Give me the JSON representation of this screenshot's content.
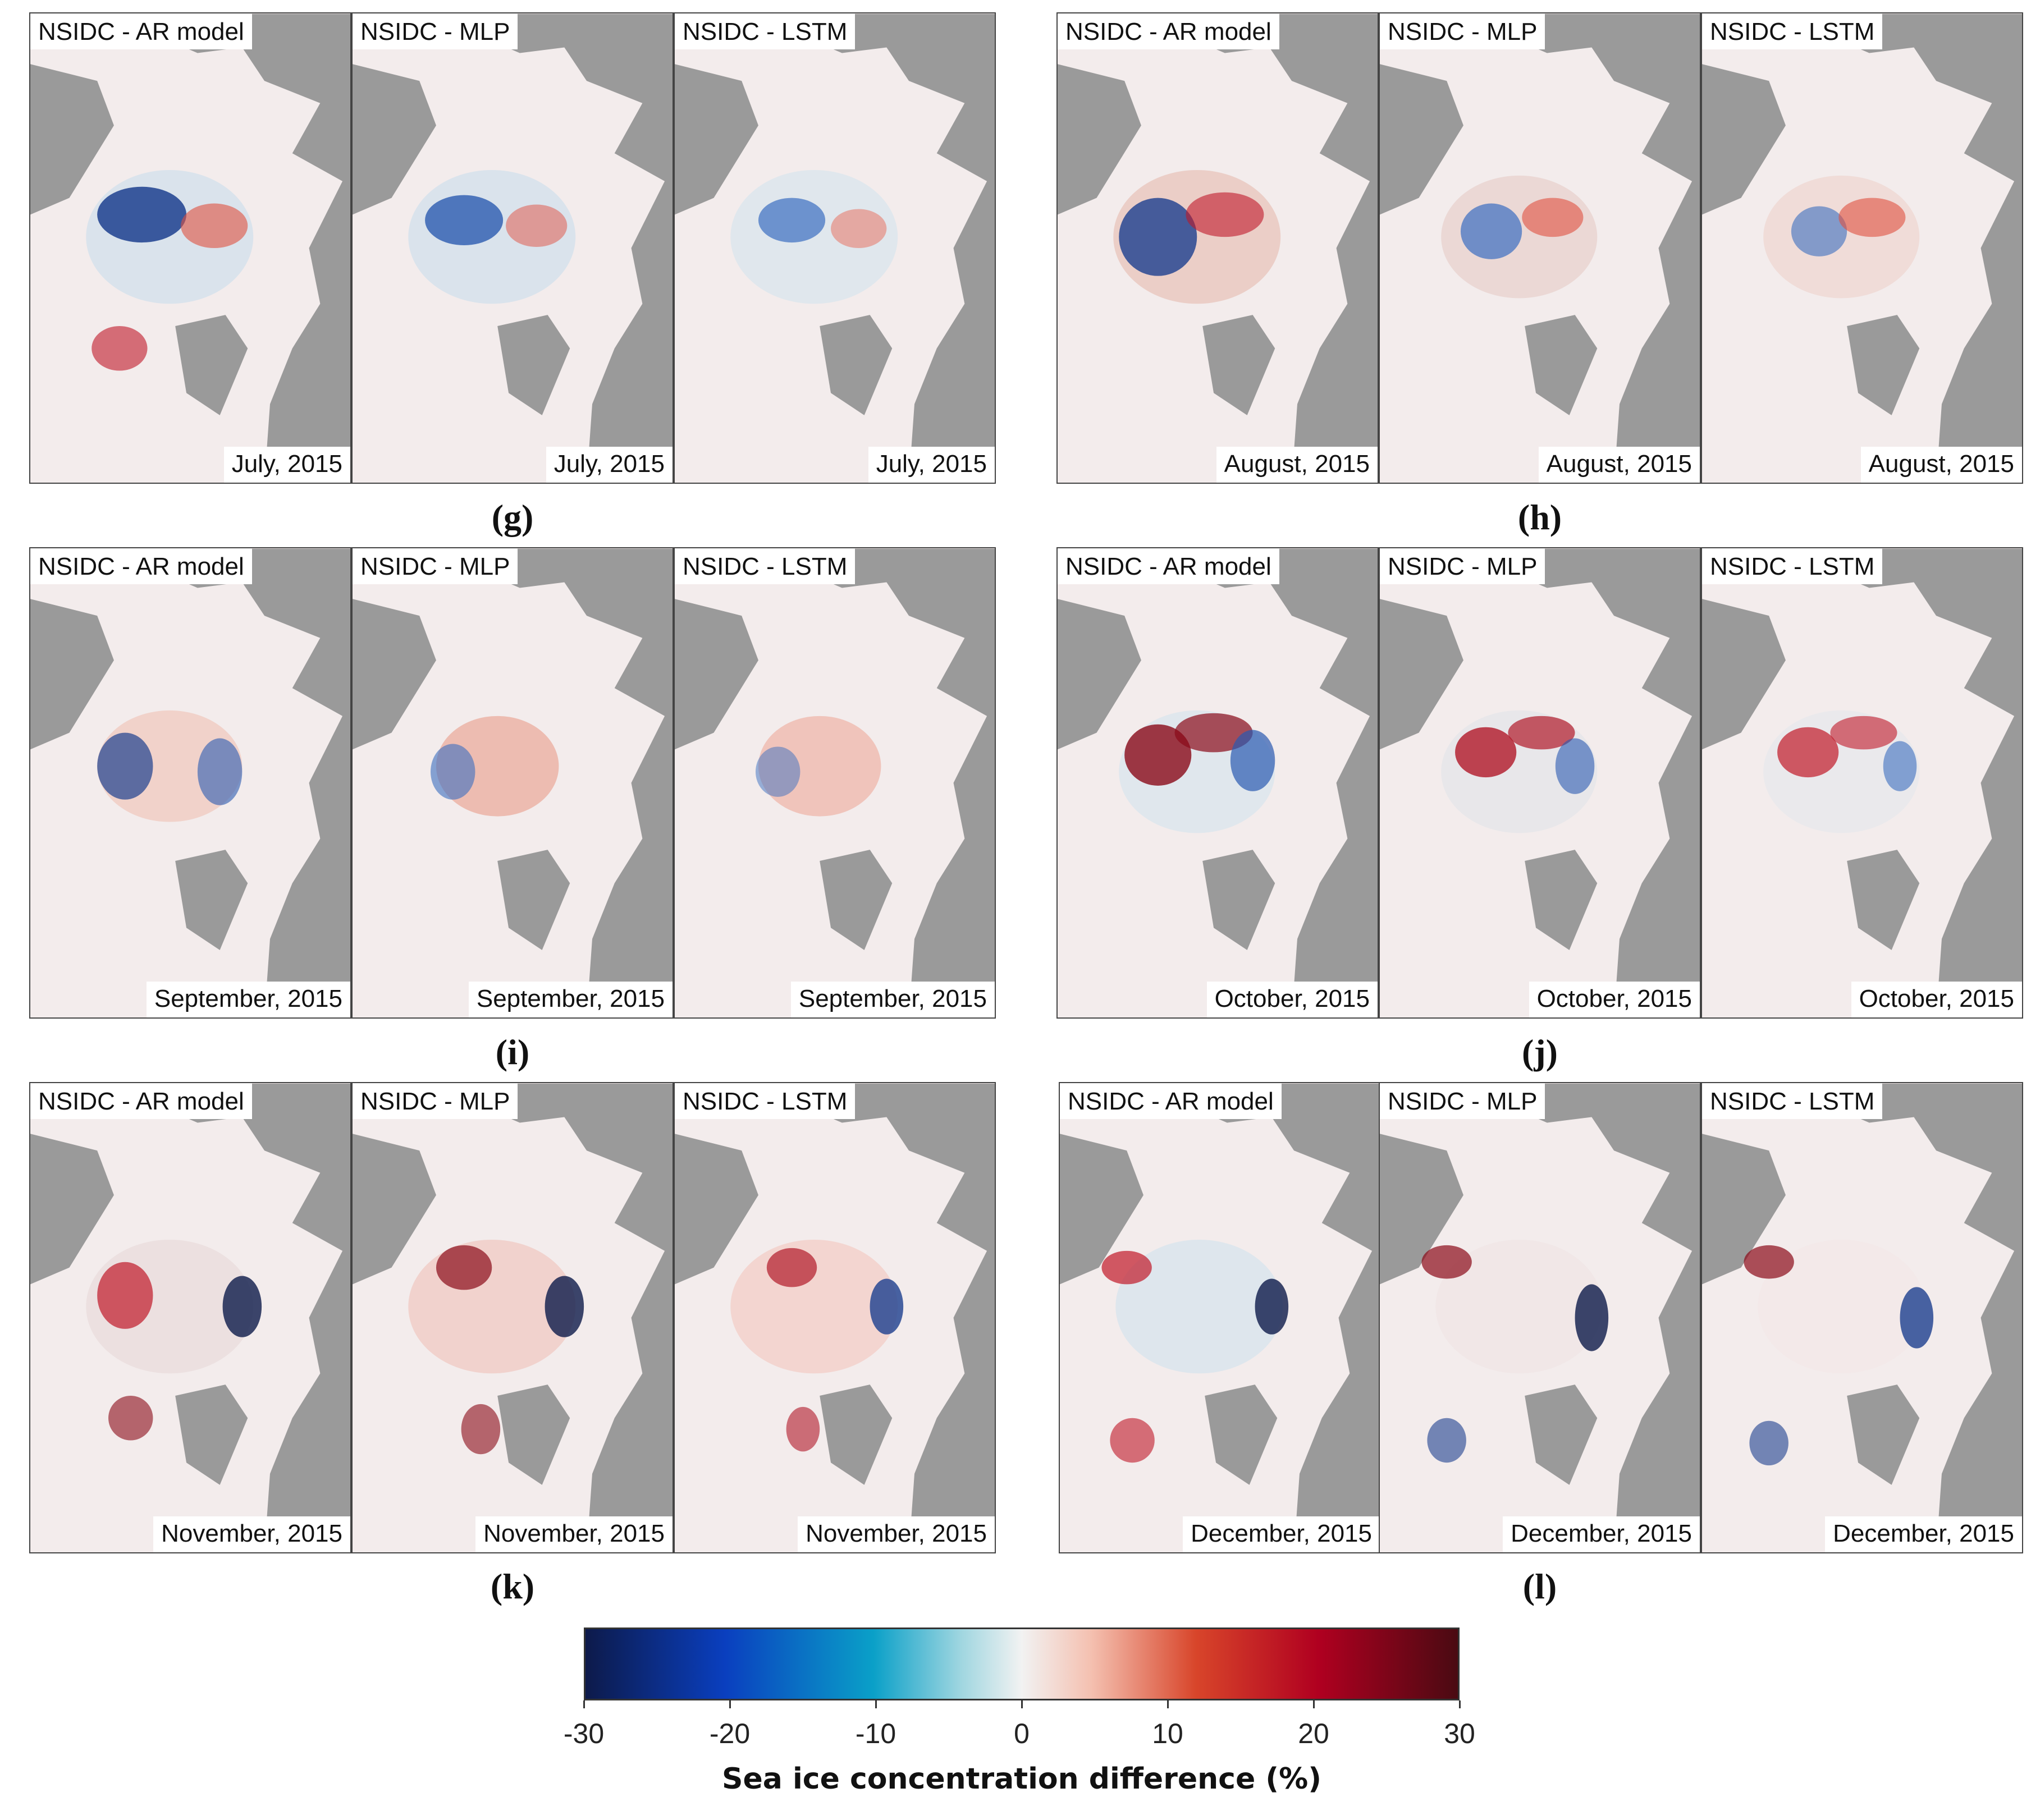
{
  "colors": {
    "land": "#9a9a9a",
    "ocean": "#f3ecec",
    "negative": "#0a3fbf",
    "positive": "#c01828",
    "dark_negative": "#0d1a4a",
    "dark_positive": "#4a0a12"
  },
  "groups": [
    {
      "label": "(g)",
      "date": "July, 2015"
    },
    {
      "label": "(h)",
      "date": "August, 2015"
    },
    {
      "label": "(i)",
      "date": "September, 2015"
    },
    {
      "label": "(j)",
      "date": "October, 2015"
    },
    {
      "label": "(k)",
      "date": "November, 2015"
    },
    {
      "label": "(l)",
      "date": "December, 2015"
    }
  ],
  "panel_titles": [
    "NSIDC - AR model",
    "NSIDC - MLP",
    "NSIDC - LSTM"
  ],
  "colorbar": {
    "ticks": [
      "-30",
      "-20",
      "-10",
      "0",
      "10",
      "20",
      "30"
    ],
    "tick_values": [
      -30,
      -20,
      -10,
      0,
      10,
      20,
      30
    ],
    "range": [
      -30,
      30
    ],
    "label": "Sea ice concentration difference (%)"
  }
}
